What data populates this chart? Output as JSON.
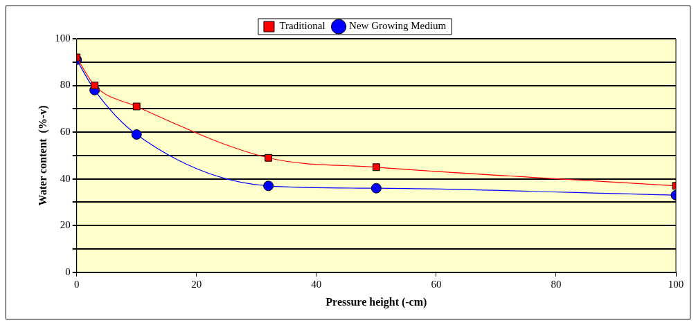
{
  "chart_data": {
    "type": "line",
    "xlabel": "Pressure height (-cm)",
    "ylabel": "Water content  (%-v)",
    "xlim": [
      0,
      100
    ],
    "xticks": [
      0,
      20,
      40,
      60,
      80,
      100
    ],
    "ylim": [
      0,
      100
    ],
    "yticks": [
      0,
      {
        "value": 10,
        "label": null
      },
      20,
      {
        "value": 30,
        "label": null
      },
      40,
      {
        "value": 50,
        "label": null
      },
      60,
      {
        "value": 70,
        "label": null
      },
      80,
      {
        "value": 90,
        "label": null
      },
      100
    ],
    "grid": "y",
    "legend": "top",
    "series": [
      {
        "name": "Traditional",
        "color": "#ff0000",
        "marker": "square",
        "x": [
          0,
          3,
          10,
          32,
          50,
          100
        ],
        "values": [
          92,
          80,
          71,
          49,
          45,
          37
        ]
      },
      {
        "name": "New Growing Medium",
        "color": "#0000ff",
        "marker": "circle",
        "x": [
          0,
          3,
          10,
          32,
          50,
          100
        ],
        "values": [
          91,
          78,
          59,
          37,
          36,
          33
        ]
      }
    ]
  }
}
